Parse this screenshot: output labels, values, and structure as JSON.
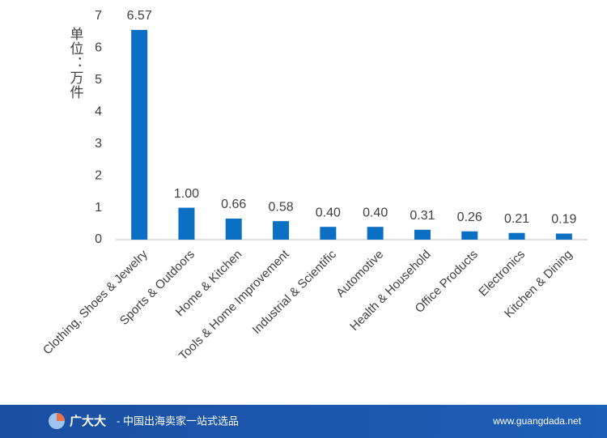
{
  "chart_data": {
    "type": "bar",
    "y_label": "单位：万件",
    "categories": [
      "Clothing, Shoes & Jewelry",
      "Sports & Outdoors",
      "Home & Kitchen",
      "Tools & Home Improvement",
      "Industrial & Scientific",
      "Automotive",
      "Health & Household",
      "Office Products",
      "Electronics",
      "Kitchen & Dining"
    ],
    "values": [
      6.57,
      1,
      0.66,
      0.58,
      0.4,
      0.4,
      0.31,
      0.26,
      0.21,
      0.19
    ],
    "value_labels": [
      "6.57",
      "1.00",
      "0.66",
      "0.58",
      "0.40",
      "0.40",
      "0.31",
      "0.26",
      "0.21",
      "0.19"
    ],
    "color": "#0b6fc4",
    "ylim": [
      0,
      7
    ],
    "yticks": [
      0,
      1,
      2,
      3,
      4,
      5,
      6,
      7
    ],
    "grid": false
  },
  "footer": {
    "brand": "广大大",
    "tagline": "- 中国出海卖家一站式选品",
    "url": "www.guangdada.net"
  }
}
